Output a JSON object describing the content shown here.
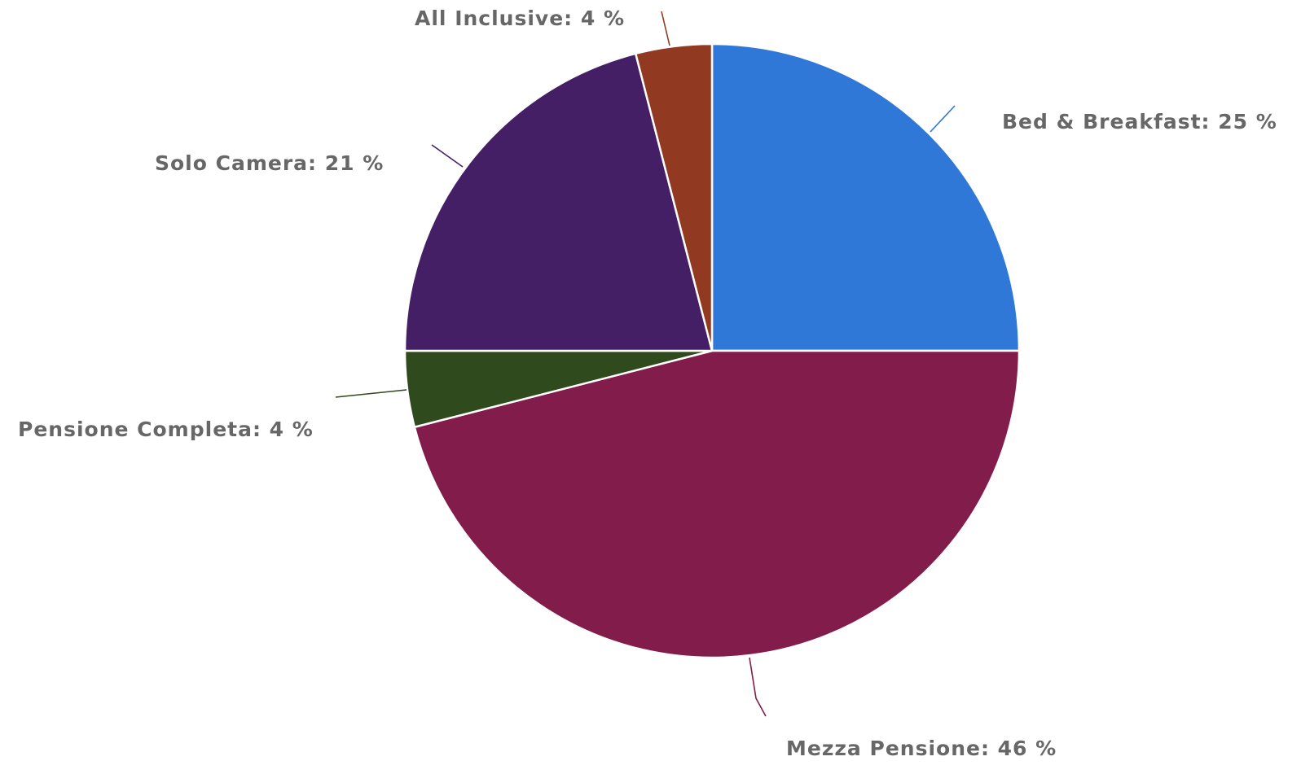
{
  "chart_data": {
    "type": "pie",
    "title": "",
    "start_angle_deg": 0,
    "direction": "clockwise",
    "slices": [
      {
        "label": "Bed & Breakfast: 25 %",
        "category": "Bed & Breakfast",
        "value": 25,
        "color": "#3078d8",
        "connector_color": "#3078d8"
      },
      {
        "label": "Mezza Pensione: 46 %",
        "category": "Mezza Pensione",
        "value": 46,
        "color": "#821c4a",
        "connector_color": "#821c4a"
      },
      {
        "label": "Pensione Completa: 4 %",
        "category": "Pensione Completa",
        "value": 4,
        "color": "#2f4a1c",
        "connector_color": "#2f4a1c"
      },
      {
        "label": "Solo Camera: 21 %",
        "category": "Solo Camera",
        "value": 21,
        "color": "#451f66",
        "connector_color": "#451f66"
      },
      {
        "label": "All Inclusive: 4 %",
        "category": "All Inclusive",
        "value": 4,
        "color": "#923a21",
        "connector_color": "#923a21"
      }
    ]
  }
}
